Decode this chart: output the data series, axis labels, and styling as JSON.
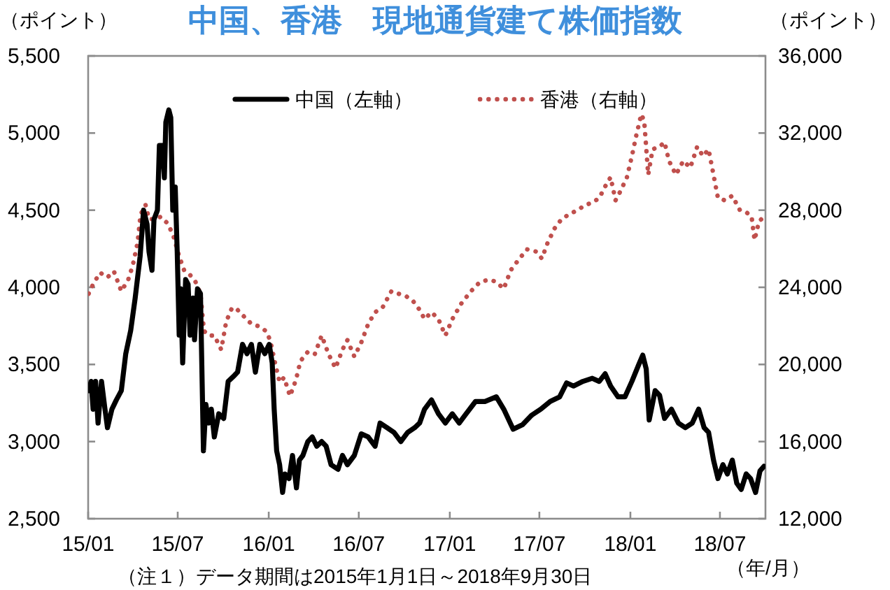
{
  "chart_data": {
    "type": "line",
    "title": "中国、香港　現地通貨建て株価指数",
    "ylabel": "（ポイント）",
    "y2label": "（ポイント）",
    "xlabel": "（年/月）",
    "annotations": [
      "（注１）データ期間は2015年1月1日～2018年9月30日"
    ],
    "xlim": [
      "2015-01-01",
      "2018-10-01"
    ],
    "xticks": [
      {
        "value": "2015-01-01",
        "label": "15/01"
      },
      {
        "value": "2015-07-01",
        "label": "15/07"
      },
      {
        "value": "2016-01-01",
        "label": "16/01"
      },
      {
        "value": "2016-07-01",
        "label": "16/07"
      },
      {
        "value": "2017-01-01",
        "label": "17/01"
      },
      {
        "value": "2017-07-01",
        "label": "17/07"
      },
      {
        "value": "2018-01-01",
        "label": "18/01"
      },
      {
        "value": "2018-07-01",
        "label": "18/07"
      }
    ],
    "ylim": [
      2500,
      5500
    ],
    "yticks": [
      {
        "value": 2500,
        "label": "2,500"
      },
      {
        "value": 3000,
        "label": "3,000"
      },
      {
        "value": 3500,
        "label": "3,500"
      },
      {
        "value": 4000,
        "label": "4,000"
      },
      {
        "value": 4500,
        "label": "4,500"
      },
      {
        "value": 5000,
        "label": "5,000"
      },
      {
        "value": 5500,
        "label": "5,500"
      }
    ],
    "y2lim": [
      12000,
      36000
    ],
    "y2ticks": [
      {
        "value": 12000,
        "label": "12,000"
      },
      {
        "value": 16000,
        "label": "16,000"
      },
      {
        "value": 20000,
        "label": "20,000"
      },
      {
        "value": 24000,
        "label": "24,000"
      },
      {
        "value": 28000,
        "label": "28,000"
      },
      {
        "value": 32000,
        "label": "32,000"
      },
      {
        "value": 36000,
        "label": "36,000"
      }
    ],
    "grid": false,
    "legend": "top",
    "series": [
      {
        "name": "中国（左軸）",
        "color": "#000000",
        "line_style": "solid",
        "x": [
          "2015-01-02",
          "2015-01-07",
          "2015-01-11",
          "2015-01-16",
          "2015-01-21",
          "2015-01-28",
          "2015-02-04",
          "2015-02-09",
          "2015-02-18",
          "2015-02-27",
          "2015-03-09",
          "2015-03-18",
          "2015-03-28",
          "2015-04-06",
          "2015-04-16",
          "2015-04-23",
          "2015-04-30",
          "2015-05-04",
          "2015-05-10",
          "2015-05-14",
          "2015-05-21",
          "2015-05-25",
          "2015-05-31",
          "2015-06-04",
          "2015-06-07",
          "2015-06-13",
          "2015-06-17",
          "2015-06-21",
          "2015-06-26",
          "2015-06-30",
          "2015-07-04",
          "2015-07-07",
          "2015-07-11",
          "2015-07-17",
          "2015-07-22",
          "2015-07-26",
          "2015-08-01",
          "2015-08-04",
          "2015-08-10",
          "2015-08-16",
          "2015-08-22",
          "2015-08-27",
          "2015-09-02",
          "2015-09-07",
          "2015-09-13",
          "2015-09-22",
          "2015-10-02",
          "2015-10-11",
          "2015-10-21",
          "2015-10-30",
          "2015-11-09",
          "2015-11-18",
          "2015-11-27",
          "2015-12-05",
          "2015-12-14",
          "2015-12-24",
          "2016-01-02",
          "2016-01-08",
          "2016-01-12",
          "2016-01-17",
          "2016-01-23",
          "2016-01-29",
          "2016-02-03",
          "2016-02-11",
          "2016-02-18",
          "2016-02-26",
          "2016-03-03",
          "2016-03-10",
          "2016-03-20",
          "2016-03-29",
          "2016-04-07",
          "2016-04-17",
          "2016-04-26",
          "2016-05-06",
          "2016-05-20",
          "2016-05-29",
          "2016-06-08",
          "2016-06-22",
          "2016-07-06",
          "2016-07-20",
          "2016-08-03",
          "2016-08-13",
          "2016-08-27",
          "2016-09-10",
          "2016-09-24",
          "2016-10-08",
          "2016-10-22",
          "2016-11-01",
          "2016-11-11",
          "2016-11-25",
          "2016-12-09",
          "2016-12-23",
          "2017-01-06",
          "2017-01-20",
          "2017-02-03",
          "2017-02-22",
          "2017-03-13",
          "2017-04-05",
          "2017-04-20",
          "2017-05-09",
          "2017-05-28",
          "2017-06-15",
          "2017-07-04",
          "2017-07-23",
          "2017-08-11",
          "2017-08-25",
          "2017-09-08",
          "2017-09-27",
          "2017-10-16",
          "2017-10-30",
          "2017-11-11",
          "2017-11-22",
          "2017-12-07",
          "2017-12-21",
          "2018-01-04",
          "2018-01-18",
          "2018-01-26",
          "2018-02-02",
          "2018-02-08",
          "2018-02-20",
          "2018-03-01",
          "2018-03-11",
          "2018-03-25",
          "2018-04-08",
          "2018-04-22",
          "2018-05-06",
          "2018-05-19",
          "2018-05-30",
          "2018-06-08",
          "2018-06-18",
          "2018-06-27",
          "2018-07-07",
          "2018-07-16",
          "2018-07-26",
          "2018-08-04",
          "2018-08-13",
          "2018-08-23",
          "2018-09-01",
          "2018-09-11",
          "2018-09-20",
          "2018-09-28"
        ],
        "values": [
          3330,
          3390,
          3210,
          3390,
          3120,
          3390,
          3210,
          3090,
          3210,
          3270,
          3330,
          3570,
          3720,
          3930,
          4200,
          4500,
          4410,
          4230,
          4110,
          4440,
          4500,
          4920,
          4920,
          4710,
          5070,
          5150,
          5100,
          4500,
          4650,
          4230,
          3690,
          3990,
          3510,
          4050,
          4020,
          3690,
          3930,
          3660,
          3990,
          3960,
          2940,
          3240,
          3120,
          3210,
          3030,
          3180,
          3150,
          3390,
          3420,
          3450,
          3630,
          3570,
          3630,
          3450,
          3630,
          3570,
          3630,
          3510,
          3210,
          2940,
          2850,
          2670,
          2790,
          2760,
          2910,
          2700,
          2880,
          2910,
          3000,
          3030,
          2970,
          3000,
          2970,
          2850,
          2820,
          2910,
          2850,
          2910,
          3050,
          3030,
          2970,
          3120,
          3090,
          3060,
          3000,
          3060,
          3090,
          3120,
          3210,
          3270,
          3180,
          3120,
          3180,
          3120,
          3180,
          3260,
          3260,
          3290,
          3210,
          3080,
          3110,
          3170,
          3210,
          3260,
          3290,
          3380,
          3360,
          3390,
          3410,
          3390,
          3440,
          3360,
          3290,
          3290,
          3390,
          3500,
          3560,
          3470,
          3140,
          3330,
          3300,
          3150,
          3210,
          3120,
          3090,
          3120,
          3210,
          3090,
          3060,
          2880,
          2760,
          2850,
          2790,
          2880,
          2730,
          2690,
          2790,
          2760,
          2670,
          2810,
          2840
        ]
      },
      {
        "name": "香港（右軸）",
        "color": "#c0504d",
        "line_style": "dotted",
        "axis": "y2",
        "x": [
          "2015-01-02",
          "2015-01-11",
          "2015-01-25",
          "2015-02-09",
          "2015-02-22",
          "2015-03-09",
          "2015-03-23",
          "2015-04-01",
          "2015-04-11",
          "2015-04-17",
          "2015-04-27",
          "2015-05-04",
          "2015-05-14",
          "2015-05-28",
          "2015-06-11",
          "2015-06-22",
          "2015-07-04",
          "2015-07-14",
          "2015-07-26",
          "2015-08-06",
          "2015-08-16",
          "2015-08-23",
          "2015-09-02",
          "2015-09-13",
          "2015-09-27",
          "2015-10-07",
          "2015-10-19",
          "2015-10-30",
          "2015-11-13",
          "2015-11-27",
          "2015-12-12",
          "2015-12-26",
          "2016-01-04",
          "2016-01-14",
          "2016-01-23",
          "2016-02-01",
          "2016-02-13",
          "2016-02-25",
          "2016-03-05",
          "2016-03-20",
          "2016-04-03",
          "2016-04-17",
          "2016-05-01",
          "2016-05-15",
          "2016-05-29",
          "2016-06-08",
          "2016-06-22",
          "2016-07-06",
          "2016-07-20",
          "2016-08-03",
          "2016-08-18",
          "2016-09-05",
          "2016-09-19",
          "2016-10-04",
          "2016-10-18",
          "2016-11-01",
          "2016-11-11",
          "2016-11-25",
          "2016-12-09",
          "2016-12-23",
          "2017-01-06",
          "2017-01-25",
          "2017-02-13",
          "2017-03-03",
          "2017-03-22",
          "2017-04-05",
          "2017-04-20",
          "2017-05-04",
          "2017-05-18",
          "2017-06-06",
          "2017-06-25",
          "2017-07-06",
          "2017-07-18",
          "2017-08-01",
          "2017-08-15",
          "2017-08-30",
          "2017-09-17",
          "2017-10-02",
          "2017-10-16",
          "2017-10-30",
          "2017-11-11",
          "2017-11-22",
          "2017-12-02",
          "2017-12-12",
          "2017-12-25",
          "2018-01-04",
          "2018-01-13",
          "2018-01-23",
          "2018-01-29",
          "2018-02-06",
          "2018-02-15",
          "2018-03-01",
          "2018-03-11",
          "2018-03-20",
          "2018-04-03",
          "2018-04-18",
          "2018-05-02",
          "2018-05-16",
          "2018-05-28",
          "2018-06-08",
          "2018-06-18",
          "2018-06-27",
          "2018-07-11",
          "2018-07-26",
          "2018-08-10",
          "2018-08-23",
          "2018-09-03",
          "2018-09-09",
          "2018-09-18",
          "2018-09-28"
        ],
        "values": [
          23670,
          24160,
          24760,
          24520,
          24830,
          23800,
          24400,
          25120,
          26330,
          27780,
          28270,
          27540,
          27540,
          27660,
          27300,
          26690,
          25610,
          24880,
          24640,
          24280,
          23670,
          21740,
          21500,
          21500,
          20770,
          22220,
          22950,
          22830,
          22460,
          22100,
          21980,
          21740,
          21260,
          20050,
          19080,
          19320,
          18360,
          19200,
          20170,
          20650,
          20530,
          21500,
          20530,
          19810,
          20770,
          21260,
          20410,
          21140,
          22100,
          22710,
          22950,
          23800,
          23670,
          23550,
          23310,
          22830,
          22350,
          22710,
          22350,
          21500,
          22350,
          23190,
          23800,
          24280,
          24400,
          24280,
          23920,
          24880,
          25360,
          25970,
          25850,
          25490,
          26330,
          27060,
          27540,
          27780,
          28020,
          28270,
          28390,
          28630,
          29230,
          29710,
          28510,
          28990,
          29710,
          30800,
          31890,
          32980,
          32610,
          29840,
          31160,
          31290,
          31530,
          30560,
          29840,
          30560,
          30200,
          31290,
          30800,
          31160,
          29840,
          28630,
          28510,
          28750,
          28020,
          27900,
          27660,
          26450,
          27420,
          27660
        ]
      }
    ]
  }
}
